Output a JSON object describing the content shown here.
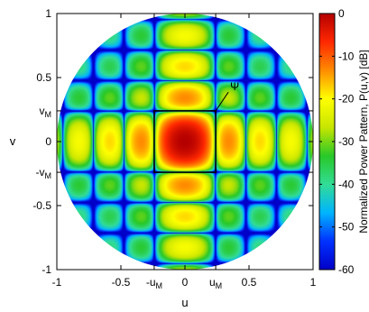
{
  "chart_data": {
    "type": "heatmap",
    "title": "",
    "xlabel": "u",
    "ylabel": "v",
    "xlim": [
      -1,
      1
    ],
    "ylim": [
      -1,
      1
    ],
    "x_ticks": [
      {
        "value": -1,
        "label": "-1"
      },
      {
        "value": -0.5,
        "label": "-0.5"
      },
      {
        "value": -0.24,
        "label": "-u",
        "sub": "M"
      },
      {
        "value": 0,
        "label": "0"
      },
      {
        "value": 0.24,
        "label": "u",
        "sub": "M"
      },
      {
        "value": 0.5,
        "label": "0.5"
      },
      {
        "value": 1,
        "label": "1"
      }
    ],
    "y_ticks": [
      {
        "value": 1,
        "label": "1"
      },
      {
        "value": 0.5,
        "label": "0.5"
      },
      {
        "value": 0.24,
        "label": "v",
        "sub": "M"
      },
      {
        "value": 0,
        "label": "0"
      },
      {
        "value": -0.24,
        "label": "-v",
        "sub": "M"
      },
      {
        "value": -0.5,
        "label": "-0.5"
      },
      {
        "value": -1,
        "label": "-1"
      }
    ],
    "colorbar": {
      "label": "Normalized Power Pattern, P(u,v) [dB]",
      "range": [
        -60,
        0
      ],
      "ticks": [
        0,
        -10,
        -20,
        -30,
        -40,
        -50,
        -60
      ],
      "tick_labels": [
        "0",
        "-10",
        "-20",
        "-30",
        "-40",
        "-50",
        "-60"
      ],
      "colormap": [
        "#0000c8",
        "#0032ff",
        "#00b4ff",
        "#32dc96",
        "#28c828",
        "#c8e600",
        "#ffff00",
        "#ff8c00",
        "#ff2800",
        "#b40000"
      ]
    },
    "visible_region": "unit circle u^2+v^2<=1",
    "main_lobe_box": {
      "u_range": [
        -0.24,
        0.24
      ],
      "v_range": [
        -0.24,
        0.24
      ]
    },
    "annotation": {
      "label": "Ψ",
      "point": [
        0.24,
        0.24
      ],
      "text_at": [
        0.36,
        0.4
      ]
    },
    "pattern": {
      "kind": "separable sinc^2",
      "aperture_u": 4.2,
      "aperture_v": 4.2,
      "floor_db": -60
    }
  }
}
